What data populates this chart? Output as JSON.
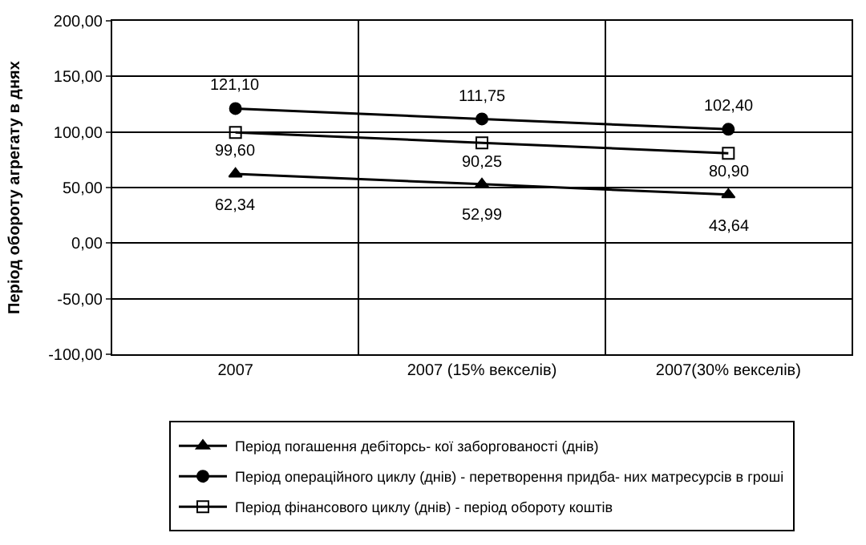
{
  "chart_data": {
    "type": "line",
    "ylabel": "Період обороту агрегату в днях",
    "categories": [
      "2007",
      "2007 (15% векселів)",
      "2007(30% векселів)"
    ],
    "series": [
      {
        "name": "Період погашення дебіторсь- кої заборгованості (днів)",
        "color": "#000000",
        "marker": "triangle",
        "values": [
          62.34,
          52.99,
          43.64
        ],
        "value_labels": [
          "62,34",
          "52,99",
          "43,64"
        ]
      },
      {
        "name": "Період операційного циклу (днів) - перетворення придба- них матресурсів в гроші",
        "color": "#000000",
        "marker": "circle",
        "values": [
          121.1,
          111.75,
          102.4
        ],
        "value_labels": [
          "121,10",
          "111,75",
          "102,40"
        ]
      },
      {
        "name": "Період фінансового циклу (днів) - період обороту коштів",
        "color": "#000000",
        "marker": "square-open",
        "values": [
          99.6,
          90.25,
          80.9
        ],
        "value_labels": [
          "99,60",
          "90,25",
          "80,90"
        ]
      }
    ],
    "ylim": [
      -100,
      200
    ],
    "yticks": [
      {
        "value": -100,
        "label": "-100,00"
      },
      {
        "value": -50,
        "label": "-50,00"
      },
      {
        "value": 0,
        "label": "0,00"
      },
      {
        "value": 50,
        "label": "50,00"
      },
      {
        "value": 100,
        "label": "100,00"
      },
      {
        "value": 150,
        "label": "150,00"
      },
      {
        "value": 200,
        "label": "200,00"
      }
    ],
    "grid": true,
    "legend": "bottom",
    "line_style": "solid"
  }
}
